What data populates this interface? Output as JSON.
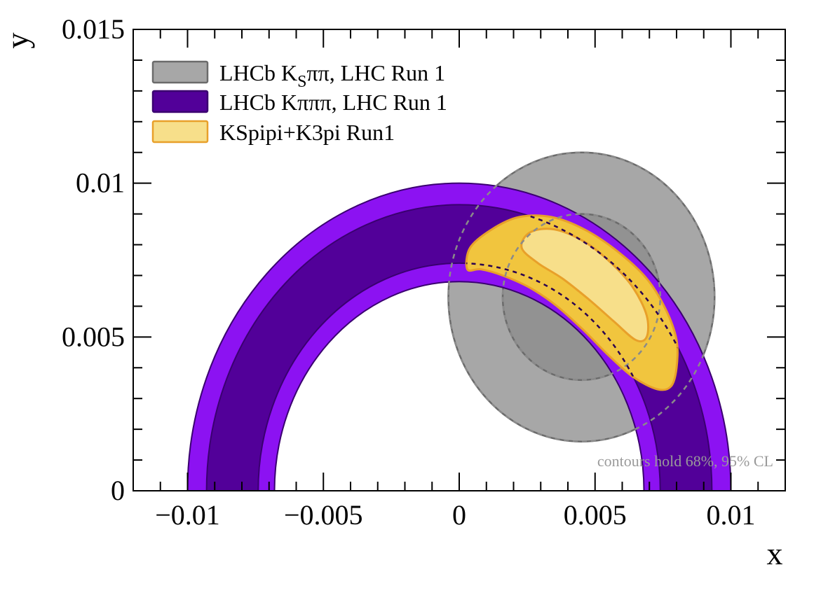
{
  "chart_data": {
    "type": "contour",
    "xlabel": "x",
    "ylabel": "y",
    "xlim": [
      -0.012,
      0.012
    ],
    "ylim": [
      0,
      0.015
    ],
    "xticks": [
      -0.01,
      -0.005,
      0,
      0.005,
      0.01
    ],
    "xtick_labels": [
      "−0.01",
      "−0.005",
      "0",
      "0.005",
      "0.01"
    ],
    "yticks": [
      0,
      0.005,
      0.01,
      0.015
    ],
    "ytick_labels": [
      "0",
      "0.005",
      "0.01",
      "0.015"
    ],
    "grid": false,
    "legend_position": "top-left",
    "annotation": "contours hold 68%, 95% CL",
    "series": [
      {
        "name_prefix": "LHCb K",
        "name_sub": "S",
        "name_suffix": "ππ, LHC Run 1",
        "shape": "ellipse",
        "color_95": "#a7a7a7",
        "color_68": "#929292",
        "edge": "#6b6b6b",
        "center": [
          0.0045,
          0.0063
        ],
        "outer_95": {
          "rx": 0.0049,
          "ry": 0.0047
        },
        "inner_68": {
          "rx": 0.0029,
          "ry": 0.0027
        }
      },
      {
        "name": "LHCb Kπππ, LHC Run 1",
        "shape": "annulus",
        "color_95": "#8c12f2",
        "color_68": "#520099",
        "edge": "#3a0070",
        "radius_95": [
          0.0068,
          0.01
        ],
        "radius_68": [
          0.0074,
          0.0093
        ]
      },
      {
        "name": "KSpipi+K3pi Run1",
        "shape": "blob",
        "color_95": "#f1c53e",
        "color_68": "#f7df8a",
        "edge": "#e8a02a",
        "outer_95": [
          [
            0.0003,
            0.0072
          ],
          [
            0.0004,
            0.0079
          ],
          [
            0.0012,
            0.0085
          ],
          [
            0.0022,
            0.0089
          ],
          [
            0.0034,
            0.0089
          ],
          [
            0.0046,
            0.0085
          ],
          [
            0.0058,
            0.0078
          ],
          [
            0.0069,
            0.0069
          ],
          [
            0.0076,
            0.0059
          ],
          [
            0.008,
            0.0049
          ],
          [
            0.008,
            0.004
          ],
          [
            0.0078,
            0.0034
          ],
          [
            0.0073,
            0.0033
          ],
          [
            0.0064,
            0.0037
          ],
          [
            0.0055,
            0.0044
          ],
          [
            0.0046,
            0.0052
          ],
          [
            0.0036,
            0.006
          ],
          [
            0.0026,
            0.0066
          ],
          [
            0.0016,
            0.007
          ],
          [
            0.0008,
            0.0072
          ]
        ],
        "inner_68": [
          [
            0.0023,
            0.0079
          ],
          [
            0.0026,
            0.0084
          ],
          [
            0.0035,
            0.0085
          ],
          [
            0.0046,
            0.0081
          ],
          [
            0.0056,
            0.0074
          ],
          [
            0.0064,
            0.0066
          ],
          [
            0.0069,
            0.0057
          ],
          [
            0.0069,
            0.005
          ],
          [
            0.0065,
            0.0049
          ],
          [
            0.0057,
            0.0055
          ],
          [
            0.0048,
            0.0062
          ],
          [
            0.0038,
            0.0069
          ],
          [
            0.0029,
            0.0074
          ]
        ]
      }
    ]
  }
}
